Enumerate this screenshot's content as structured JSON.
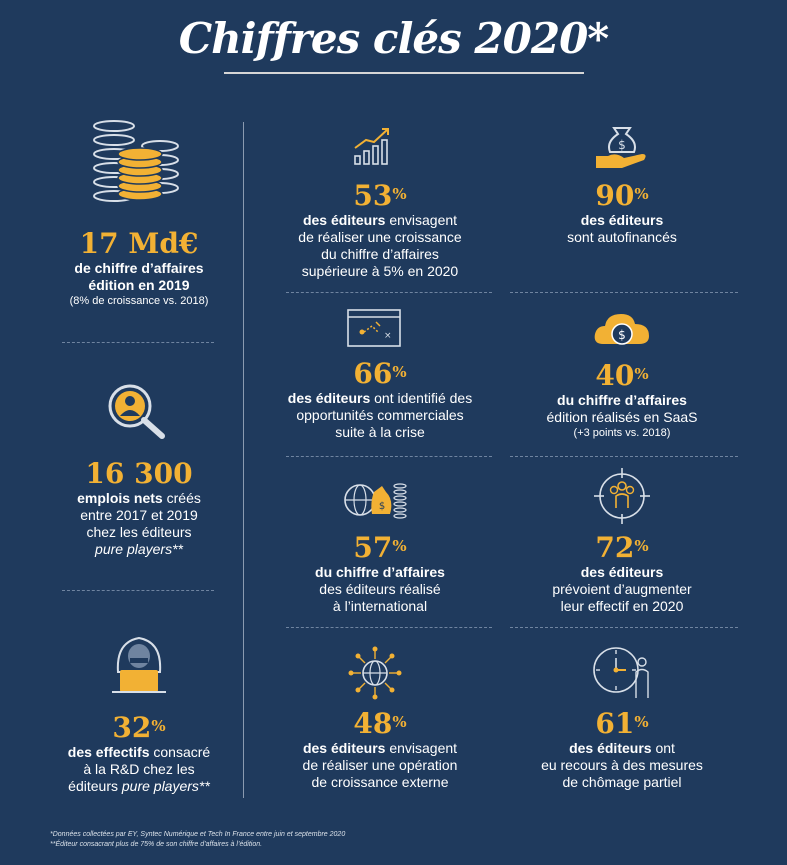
{
  "title": "Chiffres clés 2020*",
  "colors": {
    "background": "#1f3a5d",
    "accent": "#f2b134",
    "text": "#ffffff"
  },
  "stats": {
    "revenue": {
      "icon": "coin-stacks-icon",
      "value": "17 Md€",
      "line1": "de chiffre d’affaires",
      "line2": "édition en 2019",
      "note": "(8% de croissance vs. 2018)"
    },
    "jobs": {
      "icon": "person-magnifier-icon",
      "value": "16 300",
      "bold": "emplois nets",
      "line1_rest": " créés",
      "line2": "entre 2017 et 2019",
      "line3": "chez les éditeurs",
      "line4": "pure players**"
    },
    "rnd": {
      "icon": "hacker-laptop-icon",
      "value": "32",
      "sup": "%",
      "bold": "des effectifs",
      "line1_rest": " consacré",
      "line2": "à la R&D chez les",
      "line3a": "éditeurs ",
      "line3b": "pure players**"
    },
    "growth": {
      "icon": "growth-chart-icon",
      "value": "53",
      "sup": "%",
      "bold": "des éditeurs",
      "line1_rest": " envisagent",
      "line2": "de réaliser une croissance",
      "line3": "du chiffre d’affaires",
      "line4": "supérieure à 5% en 2020"
    },
    "self_funded": {
      "icon": "money-bag-hand-icon",
      "value": "90",
      "sup": "%",
      "bold": "des éditeurs",
      "line2": "sont autofinancés"
    },
    "opportunities": {
      "icon": "strategy-screen-icon",
      "value": "66",
      "sup": "%",
      "bold": "des éditeurs",
      "line1_rest": " ont identifié des",
      "line2": "opportunités commerciales",
      "line3": "suite à la crise"
    },
    "saas": {
      "icon": "cloud-dollar-icon",
      "value": "40",
      "sup": "%",
      "bold": "du chiffre d’affaires",
      "line2": "édition réalisés en SaaS",
      "note": "(+3 points vs. 2018)"
    },
    "international": {
      "icon": "globe-money-icon",
      "value": "57",
      "sup": "%",
      "bold": "du chiffre d’affaires",
      "line2": "des éditeurs réalisé",
      "line3": "à l’international"
    },
    "hiring": {
      "icon": "team-target-icon",
      "value": "72",
      "sup": "%",
      "bold": "des éditeurs",
      "line2": "prévoient d’augmenter",
      "line3": "leur effectif en 2020"
    },
    "external": {
      "icon": "network-globe-icon",
      "value": "48",
      "sup": "%",
      "bold": "des éditeurs",
      "line1_rest": " envisagent",
      "line2": "de réaliser une opération",
      "line3": "de croissance externe"
    },
    "furlough": {
      "icon": "clock-person-icon",
      "value": "61",
      "sup": "%",
      "bold": "des éditeurs",
      "line1_rest": " ont",
      "line2": "eu recours à des mesures",
      "line3": "de chômage partiel"
    }
  },
  "footnotes": {
    "note1": "*Données collectées par EY, Syntec Numérique et Tech In France entre juin et septembre 2020",
    "note2": "**Éditeur consacrant plus de 75% de son chiffre d’affaires à l’édition."
  }
}
